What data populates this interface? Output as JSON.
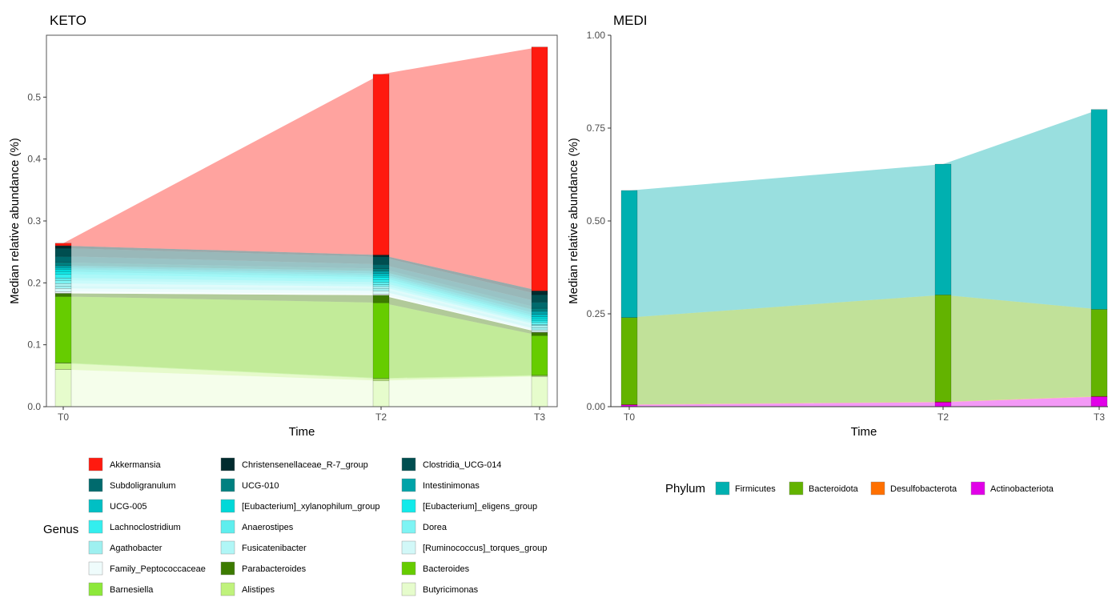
{
  "chart_data": [
    {
      "type": "area",
      "panel": "keto",
      "title": "KETO",
      "xlabel": "Time",
      "ylabel": "Median relative abundance (%)",
      "x": [
        "T0",
        "T2",
        "T3"
      ],
      "yticks": [
        "0.0",
        "0.1",
        "0.2",
        "0.3",
        "0.4",
        "0.5"
      ],
      "ylim": [
        0,
        0.6
      ],
      "legend_title": "Genus",
      "legend_position": "bottom",
      "series": [
        {
          "name": "Butyricimonas",
          "color": "#e6fccc",
          "values": [
            0.06,
            0.042,
            0.049
          ]
        },
        {
          "name": "Alistipes",
          "color": "#c0f27c",
          "values": [
            0.01,
            0.003,
            0.001
          ]
        },
        {
          "name": "Barnesiella",
          "color": "#8de83a",
          "values": [
            0.001,
            0.001,
            0.001
          ]
        },
        {
          "name": "Bacteroides",
          "color": "#66cc00",
          "values": [
            0.107,
            0.122,
            0.064
          ]
        },
        {
          "name": "Parabacteroides",
          "color": "#3c7a00",
          "values": [
            0.005,
            0.012,
            0.005
          ]
        },
        {
          "name": "Family_Peptococcaceae",
          "color": "#effcfc",
          "values": [
            0.003,
            0.002,
            0.001
          ]
        },
        {
          "name": "[Ruminococcus]_torques_group",
          "color": "#d2f8f8",
          "values": [
            0.005,
            0.005,
            0.003
          ]
        },
        {
          "name": "Agathobacter",
          "color": "#9ef0f0",
          "values": [
            0.004,
            0.004,
            0.004
          ]
        },
        {
          "name": "Fusicatenibacter",
          "color": "#b0f6f6",
          "values": [
            0.004,
            0.003,
            0.003
          ]
        },
        {
          "name": "Dorea",
          "color": "#7ef4f4",
          "values": [
            0.005,
            0.003,
            0.002
          ]
        },
        {
          "name": "Anaerostipes",
          "color": "#5eeeee",
          "values": [
            0.004,
            0.004,
            0.003
          ]
        },
        {
          "name": "Lachnoclostridium",
          "color": "#33eeee",
          "values": [
            0.006,
            0.004,
            0.003
          ]
        },
        {
          "name": "[Eubacterium]_eligens_group",
          "color": "#12eaea",
          "values": [
            0.004,
            0.004,
            0.003
          ]
        },
        {
          "name": "[Eubacterium]_xylanophilum_group",
          "color": "#00d8d8",
          "values": [
            0.004,
            0.003,
            0.003
          ]
        },
        {
          "name": "UCG-005",
          "color": "#00bfc4",
          "values": [
            0.003,
            0.003,
            0.004
          ]
        },
        {
          "name": "Intestinimonas",
          "color": "#00a3a8",
          "values": [
            0.003,
            0.004,
            0.005
          ]
        },
        {
          "name": "UCG-010",
          "color": "#008080",
          "values": [
            0.005,
            0.004,
            0.005
          ]
        },
        {
          "name": "Subdoligranulum",
          "color": "#006a6d",
          "values": [
            0.01,
            0.007,
            0.01
          ]
        },
        {
          "name": "Clostridia_UCG-014",
          "color": "#004e50",
          "values": [
            0.013,
            0.012,
            0.012
          ]
        },
        {
          "name": "Christensenellaceae_R-7_group",
          "color": "#002b2e",
          "values": [
            0.004,
            0.003,
            0.006
          ]
        },
        {
          "name": "Akkermansia",
          "color": "#ff1a0f",
          "values": [
            0.004,
            0.292,
            0.394
          ]
        }
      ],
      "legend_order": [
        "Akkermansia",
        "Christensenellaceae_R-7_group",
        "Clostridia_UCG-014",
        "Subdoligranulum",
        "UCG-010",
        "Intestinimonas",
        "UCG-005",
        "[Eubacterium]_xylanophilum_group",
        "[Eubacterium]_eligens_group",
        "Lachnoclostridium",
        "Anaerostipes",
        "Dorea",
        "Agathobacter",
        "Fusicatenibacter",
        "[Ruminococcus]_torques_group",
        "Family_Peptococcaceae",
        "Parabacteroides",
        "Bacteroides",
        "Barnesiella",
        "Alistipes",
        "Butyricimonas"
      ]
    },
    {
      "type": "area",
      "panel": "medi",
      "title": "MEDI",
      "xlabel": "Time",
      "ylabel": "Median relative abundance (%)",
      "x": [
        "T0",
        "T2",
        "T3"
      ],
      "yticks": [
        "0.00",
        "0.25",
        "0.50",
        "0.75",
        "1.00"
      ],
      "ylim": [
        0,
        1
      ],
      "legend_title": "Phylum",
      "legend_position": "bottom",
      "series": [
        {
          "name": "Actinobacteriota",
          "color": "#e100e8",
          "values": [
            0.005,
            0.012,
            0.027
          ]
        },
        {
          "name": "Desulfobacterota",
          "color": "#ff7000",
          "values": [
            0.001,
            0.001,
            0.001
          ]
        },
        {
          "name": "Bacteroidota",
          "color": "#63b300",
          "values": [
            0.234,
            0.288,
            0.234
          ]
        },
        {
          "name": "Firmicutes",
          "color": "#00b0b0",
          "values": [
            0.342,
            0.352,
            0.538
          ]
        }
      ],
      "legend_order": [
        "Firmicutes",
        "Bacteroidota",
        "Desulfobacterota",
        "Actinobacteriota"
      ]
    }
  ]
}
